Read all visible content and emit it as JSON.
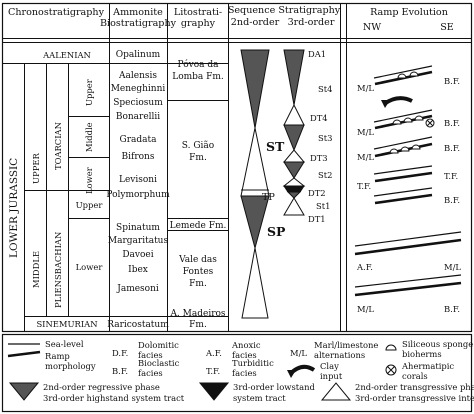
{
  "headers": {
    "chrono": "Chronostratigraphy",
    "ammonite_1": "Ammonite",
    "ammonite_2": "Biostratigraphy",
    "litho_1": "Litostrati-",
    "litho_2": "graphy",
    "sequence": "Sequence Stratigraphy",
    "second_order": "2nd-order",
    "third_order": "3rd-order",
    "ramp": "Ramp Evolution",
    "nw": "NW",
    "se": "SE"
  },
  "chrono": {
    "system": "LOWER JURASSIC",
    "aalenian": "AALENIAN",
    "upper": "UPPER",
    "middle": "MIDDLE",
    "toarcian": "TOARCIAN",
    "pliensbachian": "PLIENSBACHIAN",
    "toarcian_upper": "Upper",
    "toarcian_middle": "Middle",
    "toarcian_lower": "Lower",
    "pliens_upper": "Upper",
    "pliens_lower": "Lower",
    "sinemurian": "SINEMURIAN"
  },
  "zones": [
    "Opalinum",
    "Aalensis",
    "Meneghinni",
    "Speciosum",
    "Bonarellii",
    "Gradata",
    "Bifrons",
    "Levisoni",
    "Polymorphum",
    "Spinatum",
    "Margaritatus",
    "Davoei",
    "Ibex",
    "Jamesoni",
    "Raricostatum"
  ],
  "formations": {
    "povoa_1": "Póvoa da",
    "povoa_2": "Lomba Fm.",
    "giao_1": "S. Gião",
    "giao_2": "Fm.",
    "lemede": "Lemede Fm.",
    "vale_1": "Vale das",
    "vale_2": "Fontes",
    "vale_3": "Fm.",
    "madeiros_1": "A. Madeiros",
    "madeiros_2": "Fm."
  },
  "sequences": {
    "st": "ST",
    "tp": "TP",
    "sp": "SP",
    "third_order_labels": [
      "DA1",
      "St4",
      "DT4",
      "St3",
      "DT3",
      "St2",
      "DT2",
      "St1",
      "DT1"
    ]
  },
  "ramp_labels": {
    "left": [
      "M/L",
      "M/L",
      "M/L",
      "T.F.",
      "A.F.",
      "M/L"
    ],
    "right": [
      "B.F.",
      "B.F.",
      "B.F.",
      "T.F.",
      "B.F.",
      "M/L",
      "B.F."
    ]
  },
  "legend": {
    "sea_level": "Sea-level",
    "ramp_morph_1": "Ramp",
    "ramp_morph_2": "morphology",
    "df": "D.F.",
    "df_desc_1": "Dolomitic",
    "df_desc_2": "facies",
    "bf": "B.F.",
    "bf_desc_1": "Bioclastic",
    "bf_desc_2": "facies",
    "af": "A.F.",
    "af_desc_1": "Anoxic",
    "af_desc_2": "facies",
    "tf": "T.F.",
    "tf_desc_1": "Turbiditic",
    "tf_desc_2": "facies",
    "ml": "M/L",
    "ml_desc_1": "Marl/limestone",
    "ml_desc_2": "alternations",
    "clay_1": "Clay",
    "clay_2": "input",
    "sponge_1": "Siliceous sponge",
    "sponge_2": "bioherms",
    "corals_1": "Ahermatipic",
    "corals_2": "corals",
    "reg_2nd": "2nd-order regressive phase",
    "hst_3rd": "3rd-order highstand system tract",
    "lst_3rd_1": "3rd-order lowstand",
    "lst_3rd_2": "system tract",
    "trans_2nd_1": "2nd-order transgressive phase",
    "trans_3rd": "3rd-order transgressive interval"
  }
}
